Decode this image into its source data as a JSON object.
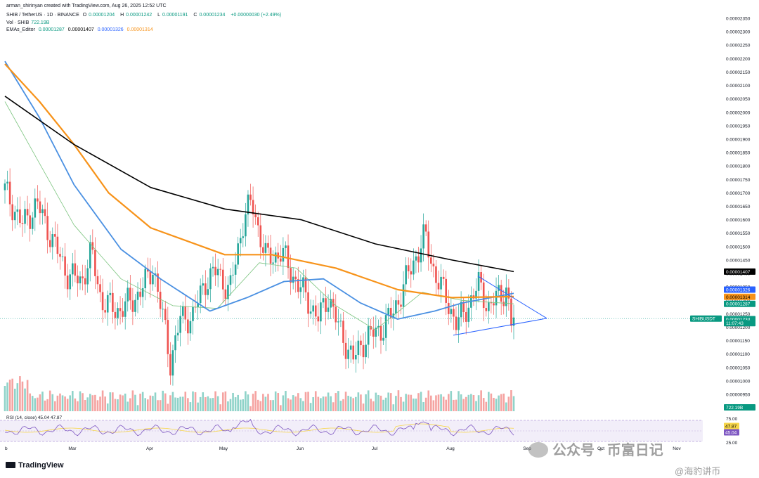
{
  "header": {
    "author_line": "arman_shirinyan created with TradingView.com, Aug 26, 2025 12:52 UTC",
    "symbol": "SHIB / TetherUS · 1D · BINANCE",
    "ohlc": {
      "o_label": "O",
      "o": "0.00001204",
      "h_label": "H",
      "h": "0.00001242",
      "l_label": "L",
      "l": "0.00001191",
      "c_label": "C",
      "c": "0.00001234",
      "change": "+0.00000030 (+2.49%)"
    },
    "vol_label": "Vol · SHIB",
    "vol_value": "722.19B",
    "ema_label": "EMAs_Editor",
    "ema_values": [
      "0.00001287",
      "0.00001407",
      "0.00001326",
      "0.00001314"
    ]
  },
  "chart_data": {
    "type": "candlestick",
    "symbol": "SHIB / TetherUS",
    "interval": "1D",
    "exchange": "BINANCE",
    "y_axis": {
      "min": 9.5e-06,
      "max": 2.35e-05,
      "ticks": [
        "0.00002350",
        "0.00002300",
        "0.00002250",
        "0.00002200",
        "0.00002150",
        "0.00002100",
        "0.00002050",
        "0.00002000",
        "0.00001950",
        "0.00001900",
        "0.00001850",
        "0.00001800",
        "0.00001750",
        "0.00001700",
        "0.00001650",
        "0.00001600",
        "0.00001550",
        "0.00001500",
        "0.00001450",
        "0.00001400",
        "0.00001350",
        "0.00001300",
        "0.00001250",
        "0.00001200",
        "0.00001150",
        "0.00001100",
        "0.00001050",
        "0.00001000",
        "0.00000950"
      ]
    },
    "x_axis": {
      "labels": [
        "b",
        "Mar",
        "Apr",
        "May",
        "Jun",
        "Jul",
        "Aug",
        "Sep",
        "Oct",
        "Nov"
      ]
    },
    "price_path": [
      {
        "date": "2025-02-01",
        "close": 1.71e-05
      },
      {
        "date": "2025-02-08",
        "close": 1.58e-05
      },
      {
        "date": "2025-02-14",
        "close": 1.66e-05
      },
      {
        "date": "2025-02-20",
        "close": 1.53e-05
      },
      {
        "date": "2025-02-26",
        "close": 1.4e-05
      },
      {
        "date": "2025-03-04",
        "close": 1.37e-05
      },
      {
        "date": "2025-03-08",
        "close": 1.48e-05
      },
      {
        "date": "2025-03-12",
        "close": 1.3e-05
      },
      {
        "date": "2025-03-18",
        "close": 1.26e-05
      },
      {
        "date": "2025-03-25",
        "close": 1.3e-05
      },
      {
        "date": "2025-03-31",
        "close": 1.38e-05
      },
      {
        "date": "2025-04-02",
        "close": 1.43e-05
      },
      {
        "date": "2025-04-07",
        "close": 1.18e-05
      },
      {
        "date": "2025-04-09",
        "close": 1.07e-05
      },
      {
        "date": "2025-04-13",
        "close": 1.23e-05
      },
      {
        "date": "2025-04-18",
        "close": 1.24e-05
      },
      {
        "date": "2025-04-23",
        "close": 1.37e-05
      },
      {
        "date": "2025-04-28",
        "close": 1.41e-05
      },
      {
        "date": "2025-05-03",
        "close": 1.33e-05
      },
      {
        "date": "2025-05-09",
        "close": 1.62e-05
      },
      {
        "date": "2025-05-12",
        "close": 1.66e-05
      },
      {
        "date": "2025-05-18",
        "close": 1.45e-05
      },
      {
        "date": "2025-05-24",
        "close": 1.48e-05
      },
      {
        "date": "2025-05-28",
        "close": 1.4e-05
      },
      {
        "date": "2025-06-03",
        "close": 1.31e-05
      },
      {
        "date": "2025-06-08",
        "close": 1.23e-05
      },
      {
        "date": "2025-06-12",
        "close": 1.32e-05
      },
      {
        "date": "2025-06-16",
        "close": 1.2e-05
      },
      {
        "date": "2025-06-22",
        "close": 1.08e-05
      },
      {
        "date": "2025-06-27",
        "close": 1.16e-05
      },
      {
        "date": "2025-07-03",
        "close": 1.19e-05
      },
      {
        "date": "2025-07-08",
        "close": 1.25e-05
      },
      {
        "date": "2025-07-14",
        "close": 1.39e-05
      },
      {
        "date": "2025-07-21",
        "close": 1.54e-05
      },
      {
        "date": "2025-07-25",
        "close": 1.4e-05
      },
      {
        "date": "2025-07-30",
        "close": 1.3e-05
      },
      {
        "date": "2025-08-03",
        "close": 1.21e-05
      },
      {
        "date": "2025-08-08",
        "close": 1.29e-05
      },
      {
        "date": "2025-08-12",
        "close": 1.36e-05
      },
      {
        "date": "2025-08-16",
        "close": 1.27e-05
      },
      {
        "date": "2025-08-20",
        "close": 1.32e-05
      },
      {
        "date": "2025-08-23",
        "close": 1.34e-05
      },
      {
        "date": "2025-08-25",
        "close": 1.21e-05
      },
      {
        "date": "2025-08-26",
        "close": 1.23e-05
      }
    ],
    "ema_black": [
      {
        "date": "2025-02-01",
        "v": 2.06e-05
      },
      {
        "date": "2025-03-01",
        "v": 1.88e-05
      },
      {
        "date": "2025-04-01",
        "v": 1.72e-05
      },
      {
        "date": "2025-05-01",
        "v": 1.64e-05
      },
      {
        "date": "2025-06-01",
        "v": 1.6e-05
      },
      {
        "date": "2025-07-01",
        "v": 1.51e-05
      },
      {
        "date": "2025-08-01",
        "v": 1.45e-05
      },
      {
        "date": "2025-08-26",
        "v": 1.407e-05
      }
    ],
    "ema_orange": [
      {
        "date": "2025-02-01",
        "v": 2.18e-05
      },
      {
        "date": "2025-02-15",
        "v": 2.04e-05
      },
      {
        "date": "2025-03-01",
        "v": 1.88e-05
      },
      {
        "date": "2025-03-15",
        "v": 1.7e-05
      },
      {
        "date": "2025-04-01",
        "v": 1.57e-05
      },
      {
        "date": "2025-05-01",
        "v": 1.47e-05
      },
      {
        "date": "2025-05-20",
        "v": 1.47e-05
      },
      {
        "date": "2025-06-15",
        "v": 1.42e-05
      },
      {
        "date": "2025-07-10",
        "v": 1.34e-05
      },
      {
        "date": "2025-08-01",
        "v": 1.31e-05
      },
      {
        "date": "2025-08-26",
        "v": 1.314e-05
      }
    ],
    "ema_blue": [
      {
        "date": "2025-02-01",
        "v": 2.19e-05
      },
      {
        "date": "2025-02-15",
        "v": 1.98e-05
      },
      {
        "date": "2025-03-01",
        "v": 1.73e-05
      },
      {
        "date": "2025-03-20",
        "v": 1.49e-05
      },
      {
        "date": "2025-04-05",
        "v": 1.38e-05
      },
      {
        "date": "2025-04-25",
        "v": 1.26e-05
      },
      {
        "date": "2025-05-10",
        "v": 1.31e-05
      },
      {
        "date": "2025-05-25",
        "v": 1.37e-05
      },
      {
        "date": "2025-06-10",
        "v": 1.38e-05
      },
      {
        "date": "2025-06-25",
        "v": 1.29e-05
      },
      {
        "date": "2025-07-10",
        "v": 1.23e-05
      },
      {
        "date": "2025-07-25",
        "v": 1.26e-05
      },
      {
        "date": "2025-08-05",
        "v": 1.29e-05
      },
      {
        "date": "2025-08-26",
        "v": 1.326e-05
      }
    ],
    "ema_green": [
      {
        "date": "2025-02-01",
        "v": 2.04e-05
      },
      {
        "date": "2025-02-15",
        "v": 1.81e-05
      },
      {
        "date": "2025-03-01",
        "v": 1.58e-05
      },
      {
        "date": "2025-03-20",
        "v": 1.38e-05
      },
      {
        "date": "2025-04-10",
        "v": 1.28e-05
      },
      {
        "date": "2025-04-28",
        "v": 1.27e-05
      },
      {
        "date": "2025-05-15",
        "v": 1.44e-05
      },
      {
        "date": "2025-05-30",
        "v": 1.42e-05
      },
      {
        "date": "2025-06-15",
        "v": 1.28e-05
      },
      {
        "date": "2025-07-01",
        "v": 1.19e-05
      },
      {
        "date": "2025-07-20",
        "v": 1.33e-05
      },
      {
        "date": "2025-08-05",
        "v": 1.3e-05
      },
      {
        "date": "2025-08-26",
        "v": 1.287e-05
      }
    ],
    "triangle": {
      "upper": [
        {
          "date": "2025-08-11",
          "v": 1.39e-05
        },
        {
          "date": "2025-09-14",
          "v": 1.233e-05
        }
      ],
      "lower": [
        {
          "date": "2025-08-02",
          "v": 1.17e-05
        },
        {
          "date": "2025-09-14",
          "v": 1.233e-05
        }
      ]
    },
    "price_labels": [
      {
        "text": "0.00001407",
        "v": 1.407e-05,
        "color": "#000000",
        "text_color": "#ffffff"
      },
      {
        "text": "0.00001326",
        "v": 1.34e-05,
        "color": "#2962ff",
        "text_color": "#ffffff"
      },
      {
        "text": "0.00001314",
        "v": 1.313e-05,
        "color": "#f7931a",
        "text_color": "#000000"
      },
      {
        "text": "0.00001287",
        "v": 1.287e-05,
        "color": "#089981",
        "text_color": "#ffffff"
      },
      {
        "text": "0.00001234",
        "v": 1.23e-05,
        "color": "#089981",
        "text_color": "#ffffff"
      },
      {
        "text": "11:07:43",
        "v": 1.215e-05,
        "color": "#089981",
        "text_color": "#ffffff"
      }
    ],
    "symbol_tag": "SHIBUSDT",
    "volume_tag": "722.19B",
    "rsi": {
      "label": "RSI (14, close)",
      "values": [
        "45.04",
        "47.87"
      ],
      "axis": [
        "75.00",
        "25.00"
      ],
      "tags": [
        {
          "text": "47.87",
          "color": "#f7d64a",
          "text_color": "#000000"
        },
        {
          "text": "45.04",
          "color": "#7e57c2",
          "text_color": "#ffffff"
        }
      ]
    },
    "colors": {
      "up": "#26a69a",
      "down": "#ef5350",
      "vol_up": "#8fd3c9",
      "vol_down": "#f5a3a1"
    }
  },
  "watermark": {
    "text": "公众号 · 币富日记",
    "text2": "@海豹讲币"
  },
  "brand": "TradingView"
}
